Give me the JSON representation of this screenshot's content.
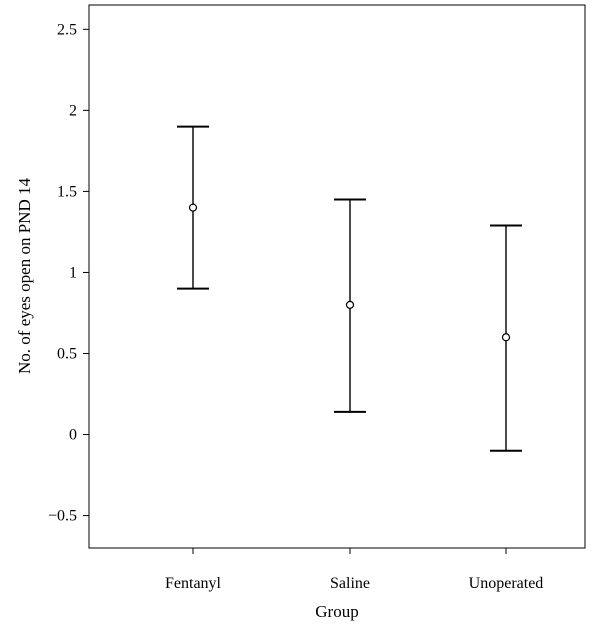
{
  "chart_data": {
    "type": "scatter",
    "subtype": "error-bar",
    "title": "",
    "xlabel": "Group",
    "ylabel": "No. of eyes open on PND 14",
    "categories": [
      "Fentanyl",
      "Saline",
      "Unoperated"
    ],
    "means": [
      1.4,
      0.8,
      0.6
    ],
    "lower": [
      0.9,
      0.14,
      -0.1
    ],
    "upper": [
      1.9,
      1.45,
      1.29
    ],
    "ylim": [
      -0.7,
      2.65
    ],
    "yticks": [
      -0.5,
      0,
      0.5,
      1,
      1.5,
      2,
      2.5
    ],
    "ytick_labels": [
      "−0.5",
      "0",
      "0.5",
      "1",
      "1.5",
      "2",
      "2.5"
    ],
    "grid": false,
    "legend": "none",
    "colors": {
      "line": "#000000",
      "marker_fill": "#ffffff"
    }
  }
}
